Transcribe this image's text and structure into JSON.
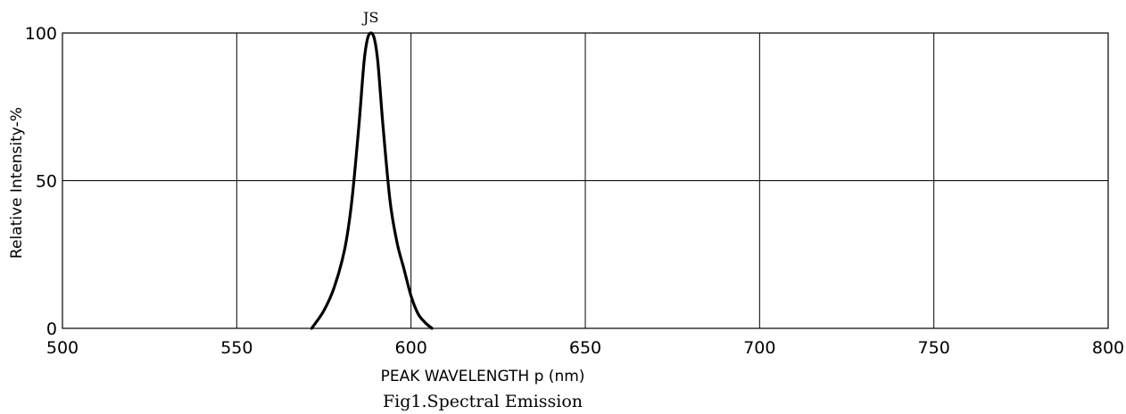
{
  "chart_data": {
    "type": "line",
    "title": "",
    "caption": "Fig1.Spectral Emission",
    "xlabel": "PEAK WAVELENGTH  p (nm)",
    "ylabel": "Relative Intensity-%",
    "xlim": [
      500,
      800
    ],
    "ylim": [
      0,
      100
    ],
    "xticks": [
      500,
      550,
      600,
      650,
      700,
      750,
      800
    ],
    "yticks": [
      0,
      50,
      100
    ],
    "grid": true,
    "series": [
      {
        "name": "JS",
        "x": [
          571.5,
          575,
          578,
          581,
          583,
          585,
          586.5,
          587.5,
          588.5,
          589.5,
          590.5,
          592,
          594,
          596,
          598,
          600,
          602,
          604,
          606
        ],
        "y": [
          0,
          6,
          14,
          27,
          43,
          68,
          90,
          98,
          100,
          98,
          90,
          68,
          43,
          29,
          20,
          11,
          5,
          2,
          0
        ]
      }
    ]
  }
}
